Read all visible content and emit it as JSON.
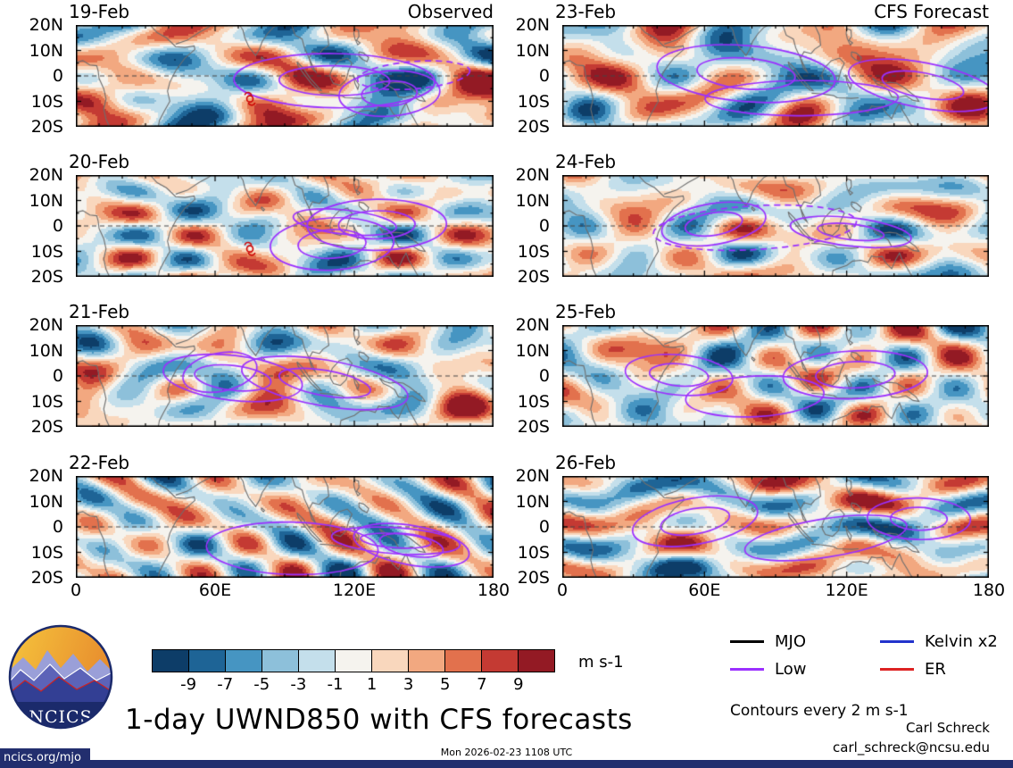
{
  "title": "1-day UWND850 with CFS forecasts",
  "panels": [
    {
      "date": "19-Feb",
      "source_label": "Observed",
      "type": "observed"
    },
    {
      "date": "20-Feb",
      "type": "observed"
    },
    {
      "date": "21-Feb",
      "type": "observed"
    },
    {
      "date": "22-Feb",
      "type": "observed"
    },
    {
      "date": "23-Feb",
      "source_label": "CFS Forecast",
      "type": "forecast"
    },
    {
      "date": "24-Feb",
      "type": "forecast"
    },
    {
      "date": "25-Feb",
      "type": "forecast"
    },
    {
      "date": "26-Feb",
      "type": "forecast"
    }
  ],
  "axis": {
    "y_ticks": [
      "20N",
      "10N",
      "0",
      "10S",
      "20S"
    ],
    "x_ticks": [
      "0",
      "60E",
      "120E",
      "180"
    ]
  },
  "colorbar": {
    "levels": [
      -9,
      -7,
      -5,
      -3,
      -1,
      1,
      3,
      5,
      7,
      9
    ],
    "tick_labels": [
      "-9",
      "-7",
      "-5",
      "-3",
      "-1",
      "1",
      "3",
      "5",
      "7",
      "9"
    ],
    "colors": [
      "#0d3d68",
      "#1e6496",
      "#4695c2",
      "#8dc0da",
      "#c4dfeb",
      "#f5f3ee",
      "#f9d7bd",
      "#f2a880",
      "#e2714d",
      "#c43a33",
      "#931a24"
    ],
    "units": "m s-1"
  },
  "legend": {
    "items": [
      {
        "label": "MJO",
        "color": "#000000"
      },
      {
        "label": "Kelvin x2",
        "color": "#2233cc"
      },
      {
        "label": "Low",
        "color": "#9b30ff"
      },
      {
        "label": "ER",
        "color": "#dd2222"
      }
    ]
  },
  "notes": {
    "contour_note": "Contours every 2 m s-1"
  },
  "credits": {
    "name": "Carl Schreck",
    "email": "carl_schreck@ncsu.edu"
  },
  "footer": {
    "url": "ncics.org/mjo",
    "timestamp": "Mon 2026-02-23 1108 UTC",
    "logo_text": "NCICS"
  },
  "chart_data": {
    "type": "heatmap",
    "variable": "UWND850 zonal wind anomaly",
    "units": "m s-1",
    "title": "1-day UWND850 with CFS forecasts",
    "lon_range_deg_east": [
      0,
      180
    ],
    "lat_range_deg": [
      -20,
      20
    ],
    "x_ticks": [
      "0",
      "60E",
      "120E",
      "180"
    ],
    "y_ticks": [
      "20N",
      "10N",
      "0",
      "10S",
      "20S"
    ],
    "shading_levels_m_per_s": [
      -9,
      -7,
      -5,
      -3,
      -1,
      1,
      3,
      5,
      7,
      9
    ],
    "shading_palette": [
      "#0d3d68",
      "#1e6496",
      "#4695c2",
      "#8dc0da",
      "#c4dfeb",
      "#f5f3ee",
      "#f9d7bd",
      "#f2a880",
      "#e2714d",
      "#c43a33",
      "#931a24"
    ],
    "contour_interval_note": "Contours every 2 m s-1",
    "panels": [
      {
        "date": "19-Feb",
        "column": "Observed"
      },
      {
        "date": "20-Feb",
        "column": "Observed"
      },
      {
        "date": "21-Feb",
        "column": "Observed"
      },
      {
        "date": "22-Feb",
        "column": "Observed"
      },
      {
        "date": "23-Feb",
        "column": "CFS Forecast"
      },
      {
        "date": "24-Feb",
        "column": "CFS Forecast"
      },
      {
        "date": "25-Feb",
        "column": "CFS Forecast"
      },
      {
        "date": "26-Feb",
        "column": "CFS Forecast"
      }
    ],
    "overlays": [
      {
        "name": "MJO",
        "color": "black"
      },
      {
        "name": "Kelvin x2",
        "color": "blue"
      },
      {
        "name": "Low",
        "color": "purple"
      },
      {
        "name": "ER",
        "color": "red"
      }
    ],
    "storm_symbols": [
      {
        "panel": "19-Feb",
        "lon_deg": 75,
        "lat_deg": -9
      },
      {
        "panel": "20-Feb",
        "lon_deg": 76,
        "lat_deg": -9
      }
    ],
    "description": "Eight tropical-strip maps (20S-20N, 0-180E) of 850-hPa zonal wind anomalies shaded every 2 m s-1 from -9 to 9; purple Low contours overlaid; left column observed 19-22 Feb, right column CFS forecast 23-26 Feb."
  }
}
